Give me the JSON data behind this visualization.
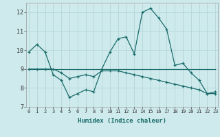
{
  "title": "",
  "xlabel": "Humidex (Indice chaleur)",
  "background_color": "#ceeaec",
  "grid_color": "#b8d8da",
  "line_color": "#1a6b6b",
  "x_values": [
    0,
    1,
    2,
    3,
    4,
    5,
    6,
    7,
    8,
    9,
    10,
    11,
    12,
    13,
    14,
    15,
    16,
    17,
    18,
    19,
    20,
    21,
    22,
    23
  ],
  "series1": [
    9.9,
    10.3,
    9.9,
    8.7,
    8.4,
    7.5,
    7.7,
    7.9,
    7.8,
    9.0,
    9.9,
    10.6,
    10.7,
    9.8,
    12.0,
    12.2,
    11.7,
    11.1,
    9.2,
    9.3,
    8.8,
    8.4,
    7.7,
    7.8
  ],
  "series2": [
    9.0,
    9.0,
    9.0,
    9.0,
    9.0,
    9.0,
    9.0,
    9.0,
    9.0,
    9.0,
    9.0,
    9.0,
    9.0,
    9.0,
    9.0,
    9.0,
    9.0,
    9.0,
    9.0,
    9.0,
    9.0,
    9.0,
    9.0,
    9.0
  ],
  "series3": [
    9.0,
    9.0,
    9.0,
    9.0,
    8.8,
    8.5,
    8.6,
    8.7,
    8.6,
    8.9,
    8.9,
    8.9,
    8.8,
    8.7,
    8.6,
    8.5,
    8.4,
    8.3,
    8.2,
    8.1,
    8.0,
    7.9,
    7.7,
    7.7
  ],
  "ylim": [
    7.0,
    12.5
  ],
  "yticks": [
    7,
    8,
    9,
    10,
    11,
    12
  ],
  "xticks": [
    0,
    1,
    2,
    3,
    4,
    5,
    6,
    7,
    8,
    9,
    10,
    11,
    12,
    13,
    14,
    15,
    16,
    17,
    18,
    19,
    20,
    21,
    22,
    23
  ],
  "xlim": [
    -0.3,
    23.3
  ]
}
